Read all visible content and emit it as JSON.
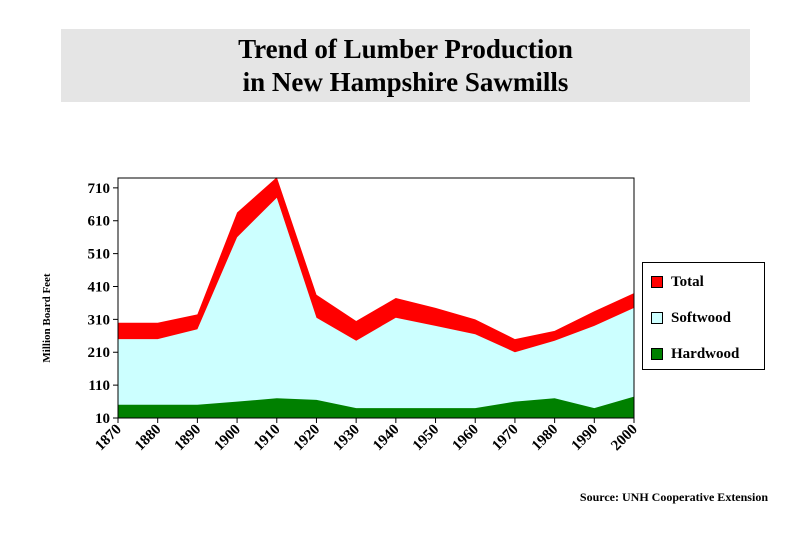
{
  "chart_data": {
    "type": "area",
    "title": [
      "Trend of Lumber Production",
      "in New Hampshire Sawmills"
    ],
    "ylabel": "Million Board Feet",
    "xlabel": "",
    "x": [
      1870,
      1880,
      1890,
      1900,
      1910,
      1920,
      1930,
      1940,
      1950,
      1960,
      1970,
      1980,
      1990,
      2000
    ],
    "ylim": [
      10,
      740
    ],
    "yticks": [
      10,
      110,
      210,
      310,
      410,
      510,
      610,
      710
    ],
    "series": [
      {
        "name": "Total",
        "color": "#ff0000",
        "values": [
          300,
          300,
          325,
          635,
          742,
          385,
          305,
          375,
          345,
          310,
          250,
          275,
          335,
          390
        ]
      },
      {
        "name": "Softwood",
        "color": "#ccffff",
        "values": [
          250,
          250,
          280,
          560,
          680,
          315,
          245,
          315,
          290,
          265,
          210,
          245,
          290,
          345
        ]
      },
      {
        "name": "Hardwood",
        "color": "#008000",
        "values": [
          50,
          50,
          50,
          60,
          70,
          65,
          40,
          40,
          40,
          40,
          60,
          70,
          40,
          75
        ]
      }
    ],
    "legend_position": "right",
    "source": "Source: UNH Cooperative Extension"
  }
}
